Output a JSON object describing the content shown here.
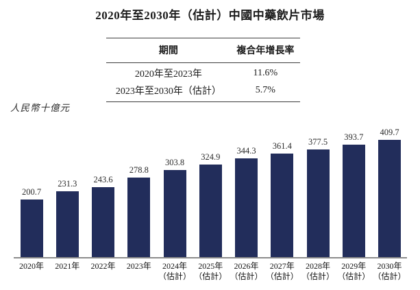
{
  "page": {
    "title": "2020年至2030年（估計）中國中藥飲片市場"
  },
  "cagr_table": {
    "headers": [
      "期間",
      "複合年增長率"
    ],
    "rows": [
      [
        "2020年至2023年",
        "11.6%"
      ],
      [
        "2023年至2030年（估計）",
        "5.7%"
      ]
    ]
  },
  "unit_label": "人民幣十億元",
  "colors": {
    "bar": "#222d5b",
    "axis": "#8c8c8c",
    "text": "#1a1a1a"
  },
  "chart_data": {
    "type": "bar",
    "title": "2020年至2030年（估計）中國中藥飲片市場",
    "ylabel": "人民幣十億元",
    "xlabel": "",
    "ylim": [
      0,
      440
    ],
    "grid": false,
    "legend": "none",
    "categories": [
      "2020年",
      "2021年",
      "2022年",
      "2023年",
      "2024年（估計）",
      "2025年（估計）",
      "2026年（估計）",
      "2027年（估計）",
      "2028年（估計）",
      "2029年（估計）",
      "2030年（估計）"
    ],
    "values": [
      200.7,
      231.3,
      243.6,
      278.8,
      303.8,
      324.9,
      344.3,
      361.4,
      377.5,
      393.7,
      409.7
    ]
  }
}
